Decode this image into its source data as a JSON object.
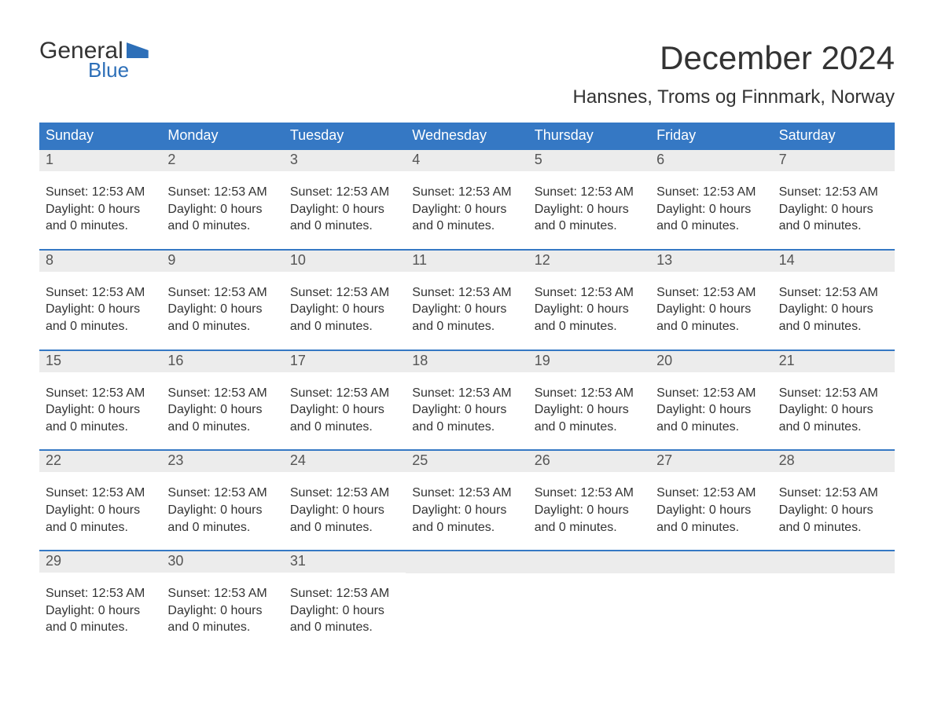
{
  "logo": {
    "general": "General",
    "blue": "Blue"
  },
  "title": "December 2024",
  "location": "Hansnes, Troms og Finnmark, Norway",
  "colors": {
    "header_bg": "#3578c4",
    "header_text": "#ffffff",
    "daybar_bg": "#ececec",
    "daybar_text": "#555555",
    "body_text": "#333333",
    "brand_blue": "#2d6fb8",
    "page_bg": "#ffffff",
    "week_border": "#3578c4"
  },
  "typography": {
    "title_fontsize": 42,
    "location_fontsize": 24,
    "weekday_fontsize": 18,
    "daynum_fontsize": 18,
    "body_fontsize": 16
  },
  "weekdays": [
    "Sunday",
    "Monday",
    "Tuesday",
    "Wednesday",
    "Thursday",
    "Friday",
    "Saturday"
  ],
  "weeks": [
    [
      {
        "num": "1",
        "line1": "Sunset: 12:53 AM",
        "line2": "Daylight: 0 hours",
        "line3": "and 0 minutes."
      },
      {
        "num": "2",
        "line1": "Sunset: 12:53 AM",
        "line2": "Daylight: 0 hours",
        "line3": "and 0 minutes."
      },
      {
        "num": "3",
        "line1": "Sunset: 12:53 AM",
        "line2": "Daylight: 0 hours",
        "line3": "and 0 minutes."
      },
      {
        "num": "4",
        "line1": "Sunset: 12:53 AM",
        "line2": "Daylight: 0 hours",
        "line3": "and 0 minutes."
      },
      {
        "num": "5",
        "line1": "Sunset: 12:53 AM",
        "line2": "Daylight: 0 hours",
        "line3": "and 0 minutes."
      },
      {
        "num": "6",
        "line1": "Sunset: 12:53 AM",
        "line2": "Daylight: 0 hours",
        "line3": "and 0 minutes."
      },
      {
        "num": "7",
        "line1": "Sunset: 12:53 AM",
        "line2": "Daylight: 0 hours",
        "line3": "and 0 minutes."
      }
    ],
    [
      {
        "num": "8",
        "line1": "Sunset: 12:53 AM",
        "line2": "Daylight: 0 hours",
        "line3": "and 0 minutes."
      },
      {
        "num": "9",
        "line1": "Sunset: 12:53 AM",
        "line2": "Daylight: 0 hours",
        "line3": "and 0 minutes."
      },
      {
        "num": "10",
        "line1": "Sunset: 12:53 AM",
        "line2": "Daylight: 0 hours",
        "line3": "and 0 minutes."
      },
      {
        "num": "11",
        "line1": "Sunset: 12:53 AM",
        "line2": "Daylight: 0 hours",
        "line3": "and 0 minutes."
      },
      {
        "num": "12",
        "line1": "Sunset: 12:53 AM",
        "line2": "Daylight: 0 hours",
        "line3": "and 0 minutes."
      },
      {
        "num": "13",
        "line1": "Sunset: 12:53 AM",
        "line2": "Daylight: 0 hours",
        "line3": "and 0 minutes."
      },
      {
        "num": "14",
        "line1": "Sunset: 12:53 AM",
        "line2": "Daylight: 0 hours",
        "line3": "and 0 minutes."
      }
    ],
    [
      {
        "num": "15",
        "line1": "Sunset: 12:53 AM",
        "line2": "Daylight: 0 hours",
        "line3": "and 0 minutes."
      },
      {
        "num": "16",
        "line1": "Sunset: 12:53 AM",
        "line2": "Daylight: 0 hours",
        "line3": "and 0 minutes."
      },
      {
        "num": "17",
        "line1": "Sunset: 12:53 AM",
        "line2": "Daylight: 0 hours",
        "line3": "and 0 minutes."
      },
      {
        "num": "18",
        "line1": "Sunset: 12:53 AM",
        "line2": "Daylight: 0 hours",
        "line3": "and 0 minutes."
      },
      {
        "num": "19",
        "line1": "Sunset: 12:53 AM",
        "line2": "Daylight: 0 hours",
        "line3": "and 0 minutes."
      },
      {
        "num": "20",
        "line1": "Sunset: 12:53 AM",
        "line2": "Daylight: 0 hours",
        "line3": "and 0 minutes."
      },
      {
        "num": "21",
        "line1": "Sunset: 12:53 AM",
        "line2": "Daylight: 0 hours",
        "line3": "and 0 minutes."
      }
    ],
    [
      {
        "num": "22",
        "line1": "Sunset: 12:53 AM",
        "line2": "Daylight: 0 hours",
        "line3": "and 0 minutes."
      },
      {
        "num": "23",
        "line1": "Sunset: 12:53 AM",
        "line2": "Daylight: 0 hours",
        "line3": "and 0 minutes."
      },
      {
        "num": "24",
        "line1": "Sunset: 12:53 AM",
        "line2": "Daylight: 0 hours",
        "line3": "and 0 minutes."
      },
      {
        "num": "25",
        "line1": "Sunset: 12:53 AM",
        "line2": "Daylight: 0 hours",
        "line3": "and 0 minutes."
      },
      {
        "num": "26",
        "line1": "Sunset: 12:53 AM",
        "line2": "Daylight: 0 hours",
        "line3": "and 0 minutes."
      },
      {
        "num": "27",
        "line1": "Sunset: 12:53 AM",
        "line2": "Daylight: 0 hours",
        "line3": "and 0 minutes."
      },
      {
        "num": "28",
        "line1": "Sunset: 12:53 AM",
        "line2": "Daylight: 0 hours",
        "line3": "and 0 minutes."
      }
    ],
    [
      {
        "num": "29",
        "line1": "Sunset: 12:53 AM",
        "line2": "Daylight: 0 hours",
        "line3": "and 0 minutes."
      },
      {
        "num": "30",
        "line1": "Sunset: 12:53 AM",
        "line2": "Daylight: 0 hours",
        "line3": "and 0 minutes."
      },
      {
        "num": "31",
        "line1": "Sunset: 12:53 AM",
        "line2": "Daylight: 0 hours",
        "line3": "and 0 minutes."
      },
      null,
      null,
      null,
      null
    ]
  ]
}
